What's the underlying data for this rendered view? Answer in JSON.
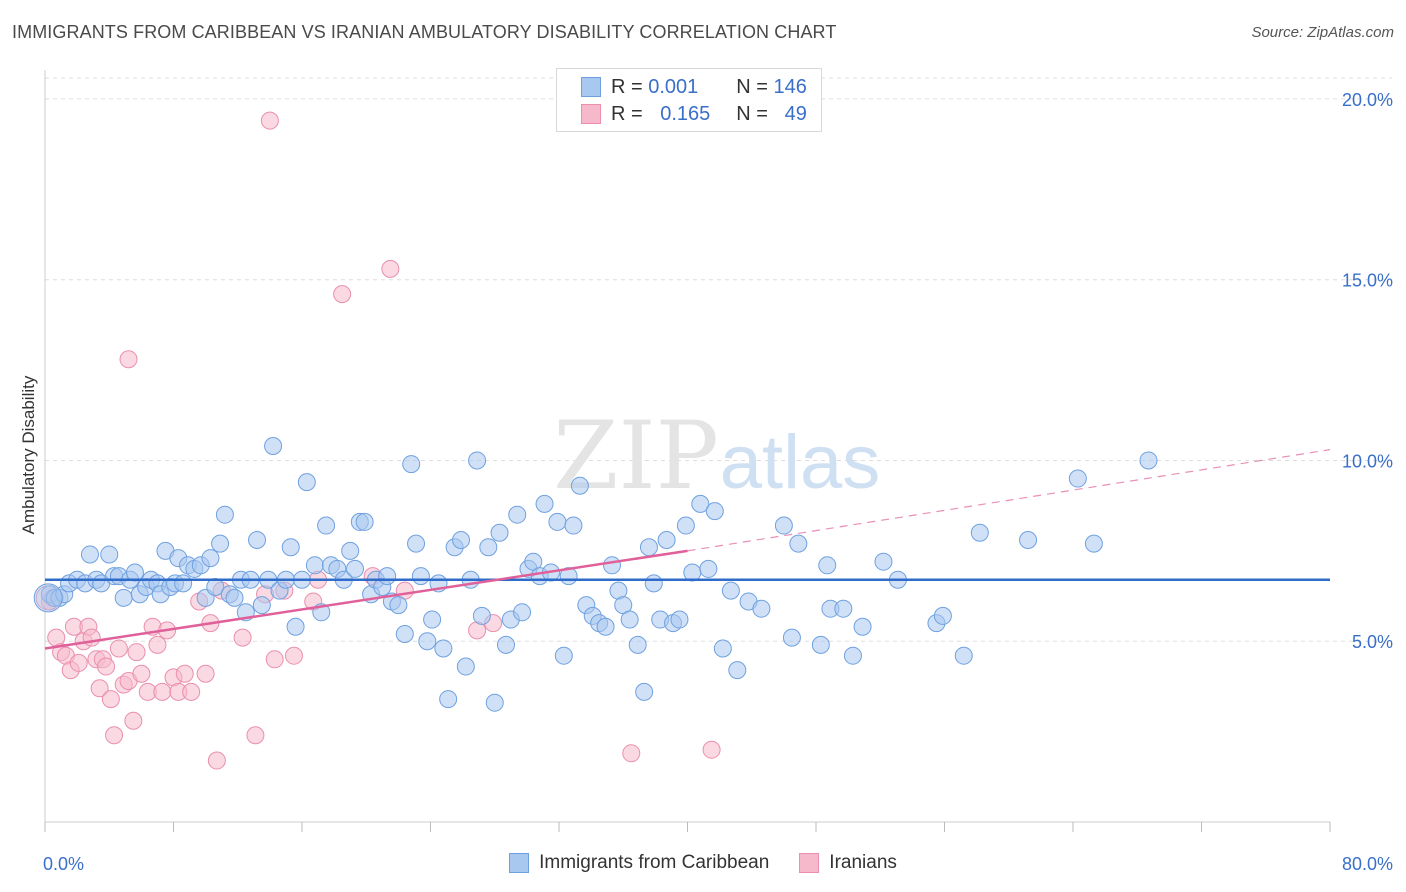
{
  "title": "IMMIGRANTS FROM CARIBBEAN VS IRANIAN AMBULATORY DISABILITY CORRELATION CHART",
  "source": "Source: ZipAtlas.com",
  "watermark": {
    "zip": "ZIP",
    "atlas": "atlas"
  },
  "legend": {
    "rows": [
      {
        "r_label": "R =",
        "r_value": "0.001",
        "n_label": "N =",
        "n_value": "146"
      },
      {
        "r_label": "R =",
        "r_value": "0.165",
        "n_label": "N =",
        "n_value": "49"
      }
    ]
  },
  "colors": {
    "blue_fill": "#a9c8f0",
    "blue_stroke": "#6fa1e0",
    "blue_line": "#2f6cc9",
    "pink_fill": "#f6b9cc",
    "pink_stroke": "#ea8fae",
    "pink_line": "#e0609a",
    "grid": "#dddddd",
    "axis_text": "#3a6fc9"
  },
  "chart_data": {
    "type": "scatter",
    "title": "IMMIGRANTS FROM CARIBBEAN VS IRANIAN AMBULATORY DISABILITY CORRELATION CHART",
    "xlabel": "",
    "ylabel": "Ambulatory Disability",
    "xlim": [
      0,
      80
    ],
    "ylim": [
      0,
      20.8
    ],
    "x_tick_labels": [
      "0.0%",
      "80.0%"
    ],
    "y_ticks": [
      5,
      10,
      15,
      20
    ],
    "y_tick_labels": [
      "5.0%",
      "10.0%",
      "15.0%",
      "20.0%"
    ],
    "grid": "horizontal dashed",
    "legend_position": "top-center and bottom",
    "series": [
      {
        "name": "Immigrants from Caribbean",
        "color": "#a9c8f0",
        "trend": {
          "x0": 0,
          "y0": 6.7,
          "x1": 80,
          "y1": 6.7,
          "dashed_from": null
        },
        "points": [
          [
            0.3,
            6.3
          ],
          [
            0.6,
            6.2
          ],
          [
            0.9,
            6.2
          ],
          [
            1.2,
            6.3
          ],
          [
            1.5,
            6.6
          ],
          [
            2.0,
            6.7
          ],
          [
            2.5,
            6.6
          ],
          [
            2.8,
            7.4
          ],
          [
            3.2,
            6.7
          ],
          [
            3.5,
            6.6
          ],
          [
            4.0,
            7.4
          ],
          [
            4.3,
            6.8
          ],
          [
            4.6,
            6.8
          ],
          [
            4.9,
            6.2
          ],
          [
            5.3,
            6.7
          ],
          [
            5.6,
            6.9
          ],
          [
            5.9,
            6.3
          ],
          [
            6.3,
            6.5
          ],
          [
            6.6,
            6.7
          ],
          [
            7.0,
            6.6
          ],
          [
            7.2,
            6.3
          ],
          [
            7.5,
            7.5
          ],
          [
            7.8,
            6.5
          ],
          [
            8.1,
            6.6
          ],
          [
            8.3,
            7.3
          ],
          [
            8.6,
            6.6
          ],
          [
            8.9,
            7.1
          ],
          [
            9.3,
            7.0
          ],
          [
            9.7,
            7.1
          ],
          [
            10.0,
            6.2
          ],
          [
            10.3,
            7.3
          ],
          [
            10.6,
            6.5
          ],
          [
            10.9,
            7.7
          ],
          [
            11.2,
            8.5
          ],
          [
            11.5,
            6.3
          ],
          [
            11.8,
            6.2
          ],
          [
            12.2,
            6.7
          ],
          [
            12.5,
            5.8
          ],
          [
            12.8,
            6.7
          ],
          [
            13.2,
            7.8
          ],
          [
            13.5,
            6.0
          ],
          [
            13.9,
            6.7
          ],
          [
            14.2,
            10.4
          ],
          [
            14.6,
            6.4
          ],
          [
            15.0,
            6.7
          ],
          [
            15.3,
            7.6
          ],
          [
            15.6,
            5.4
          ],
          [
            16.0,
            6.7
          ],
          [
            16.3,
            9.4
          ],
          [
            16.8,
            7.1
          ],
          [
            17.2,
            5.8
          ],
          [
            17.5,
            8.2
          ],
          [
            17.8,
            7.1
          ],
          [
            18.2,
            7.0
          ],
          [
            18.6,
            6.7
          ],
          [
            19.0,
            7.5
          ],
          [
            19.3,
            7.0
          ],
          [
            19.6,
            8.3
          ],
          [
            19.9,
            8.3
          ],
          [
            20.3,
            6.3
          ],
          [
            20.6,
            6.7
          ],
          [
            21.0,
            6.5
          ],
          [
            21.3,
            6.8
          ],
          [
            21.6,
            6.1
          ],
          [
            22.0,
            6.0
          ],
          [
            22.4,
            5.2
          ],
          [
            22.8,
            9.9
          ],
          [
            23.1,
            7.7
          ],
          [
            23.4,
            6.8
          ],
          [
            23.8,
            5.0
          ],
          [
            24.1,
            5.6
          ],
          [
            24.5,
            6.6
          ],
          [
            24.8,
            4.8
          ],
          [
            25.1,
            3.4
          ],
          [
            25.5,
            7.6
          ],
          [
            25.9,
            7.8
          ],
          [
            26.2,
            4.3
          ],
          [
            26.5,
            6.7
          ],
          [
            26.9,
            10.0
          ],
          [
            27.2,
            5.7
          ],
          [
            27.6,
            7.6
          ],
          [
            28.0,
            3.3
          ],
          [
            28.3,
            8.0
          ],
          [
            28.7,
            4.9
          ],
          [
            29.0,
            5.6
          ],
          [
            29.4,
            8.5
          ],
          [
            29.7,
            5.8
          ],
          [
            30.1,
            7.0
          ],
          [
            30.4,
            7.2
          ],
          [
            30.8,
            6.8
          ],
          [
            31.1,
            8.8
          ],
          [
            31.5,
            6.9
          ],
          [
            31.9,
            8.3
          ],
          [
            32.3,
            4.6
          ],
          [
            32.6,
            6.8
          ],
          [
            32.9,
            8.2
          ],
          [
            33.3,
            9.3
          ],
          [
            33.7,
            6.0
          ],
          [
            34.1,
            5.7
          ],
          [
            34.5,
            5.5
          ],
          [
            34.9,
            5.4
          ],
          [
            35.3,
            7.1
          ],
          [
            35.7,
            6.4
          ],
          [
            36.0,
            6.0
          ],
          [
            36.4,
            5.6
          ],
          [
            36.9,
            4.9
          ],
          [
            37.3,
            3.6
          ],
          [
            37.6,
            7.6
          ],
          [
            37.9,
            6.6
          ],
          [
            38.3,
            5.6
          ],
          [
            38.7,
            7.8
          ],
          [
            39.1,
            5.5
          ],
          [
            39.5,
            5.6
          ],
          [
            39.9,
            8.2
          ],
          [
            40.3,
            6.9
          ],
          [
            40.8,
            8.8
          ],
          [
            41.3,
            7.0
          ],
          [
            41.7,
            8.6
          ],
          [
            42.2,
            4.8
          ],
          [
            42.7,
            6.4
          ],
          [
            43.1,
            4.2
          ],
          [
            43.8,
            6.1
          ],
          [
            44.6,
            5.9
          ],
          [
            46.0,
            8.2
          ],
          [
            46.5,
            5.1
          ],
          [
            46.9,
            7.7
          ],
          [
            48.3,
            4.9
          ],
          [
            48.7,
            7.1
          ],
          [
            48.9,
            5.9
          ],
          [
            49.7,
            5.9
          ],
          [
            50.3,
            4.6
          ],
          [
            50.9,
            5.4
          ],
          [
            52.2,
            7.2
          ],
          [
            53.1,
            6.7
          ],
          [
            55.5,
            5.5
          ],
          [
            55.9,
            5.7
          ],
          [
            57.2,
            4.6
          ],
          [
            58.2,
            8.0
          ],
          [
            61.2,
            7.8
          ],
          [
            64.3,
            9.5
          ],
          [
            65.3,
            7.7
          ],
          [
            68.7,
            10.0
          ]
        ]
      },
      {
        "name": "Iranians",
        "color": "#f6b9cc",
        "trend": {
          "x0": 0,
          "y0": 4.8,
          "x1": 40,
          "y1": 7.5,
          "x_ext": 80,
          "y_ext": 10.3
        },
        "points": [
          [
            0.3,
            6.1
          ],
          [
            0.5,
            6.2
          ],
          [
            0.7,
            5.1
          ],
          [
            1.0,
            4.7
          ],
          [
            1.3,
            4.6
          ],
          [
            1.6,
            4.2
          ],
          [
            1.8,
            5.4
          ],
          [
            2.1,
            4.4
          ],
          [
            2.4,
            5.0
          ],
          [
            2.7,
            5.4
          ],
          [
            2.9,
            5.1
          ],
          [
            3.2,
            4.5
          ],
          [
            3.4,
            3.7
          ],
          [
            3.6,
            4.5
          ],
          [
            3.8,
            4.3
          ],
          [
            4.1,
            3.4
          ],
          [
            4.3,
            2.4
          ],
          [
            4.6,
            4.8
          ],
          [
            4.9,
            3.8
          ],
          [
            5.2,
            3.9
          ],
          [
            5.5,
            2.8
          ],
          [
            5.7,
            4.7
          ],
          [
            6.0,
            4.1
          ],
          [
            6.4,
            3.6
          ],
          [
            6.7,
            5.4
          ],
          [
            7.0,
            4.9
          ],
          [
            7.3,
            3.6
          ],
          [
            7.6,
            5.3
          ],
          [
            8.0,
            4.0
          ],
          [
            8.3,
            3.6
          ],
          [
            8.7,
            4.1
          ],
          [
            9.1,
            3.6
          ],
          [
            9.6,
            6.1
          ],
          [
            10.0,
            4.1
          ],
          [
            10.3,
            5.5
          ],
          [
            10.7,
            1.7
          ],
          [
            11.0,
            6.4
          ],
          [
            12.3,
            5.1
          ],
          [
            13.1,
            2.4
          ],
          [
            13.7,
            6.3
          ],
          [
            14.3,
            4.5
          ],
          [
            14.9,
            6.4
          ],
          [
            15.5,
            4.6
          ],
          [
            16.7,
            6.1
          ],
          [
            18.5,
            14.6
          ],
          [
            21.5,
            15.3
          ],
          [
            22.4,
            6.4
          ],
          [
            26.9,
            5.3
          ],
          [
            27.9,
            5.5
          ],
          [
            36.5,
            1.9
          ],
          [
            41.5,
            2.0
          ],
          [
            14.0,
            19.4
          ],
          [
            5.2,
            12.8
          ],
          [
            17.0,
            6.7
          ],
          [
            20.4,
            6.8
          ]
        ]
      }
    ]
  },
  "bottom_legend": {
    "items": [
      "Immigrants from Caribbean",
      "Iranians"
    ]
  }
}
